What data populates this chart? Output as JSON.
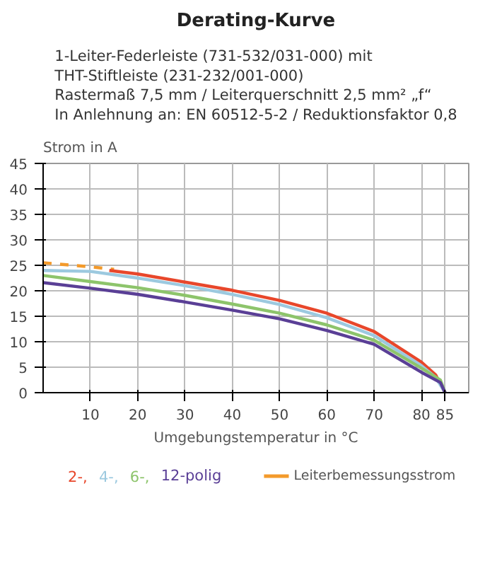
{
  "chart_data": {
    "type": "line",
    "title": "Derating-Kurve",
    "subtitle": "1-Leiter-Federleiste (731-532/031-000) mit\nTHT-Stiftleiste (231-232/001-000)\nRastermaß 7,5 mm / Leiterquerschnitt 2,5 mm² „f“\nIn Anlehnung an: EN 60512-5-2 / Reduktionsfaktor 0,8",
    "ylabel": "Strom in A",
    "xlabel": "Umgebungstemperatur in °C",
    "xlim": [
      0,
      90
    ],
    "xticks": [
      10,
      20,
      30,
      40,
      50,
      60,
      70,
      80,
      85
    ],
    "ylim": [
      0,
      45
    ],
    "yticks": [
      0,
      5,
      10,
      15,
      20,
      25,
      30,
      35,
      40,
      45
    ],
    "grid": true,
    "legend": "bottom",
    "marker": "none",
    "series": [
      {
        "name": "Leiterbemessungsstrom",
        "color": "#f39a2b",
        "line_style": "dashed",
        "x": [
          0,
          5,
          10,
          15
        ],
        "values": [
          25.5,
          25.1,
          24.7,
          24.2
        ]
      },
      {
        "name": "2-,",
        "color": "#e8472b",
        "x": [
          14,
          20,
          30,
          40,
          50,
          60,
          70,
          80,
          83,
          85
        ],
        "values": [
          24,
          23.3,
          21.7,
          20.1,
          18.1,
          15.6,
          12,
          6,
          3.5,
          0
        ]
      },
      {
        "name": "4-,",
        "color": "#9cc9df",
        "x": [
          0,
          10,
          20,
          30,
          40,
          50,
          60,
          70,
          80,
          83,
          85
        ],
        "values": [
          24,
          23.8,
          22.5,
          21,
          19.3,
          17.3,
          14.7,
          11.2,
          5.3,
          3,
          0
        ]
      },
      {
        "name": "6-,",
        "color": "#8dc46b",
        "x": [
          0,
          10,
          20,
          30,
          40,
          50,
          60,
          70,
          80,
          84,
          85
        ],
        "values": [
          23,
          21.8,
          20.6,
          19.1,
          17.4,
          15.6,
          13.3,
          10.3,
          4.8,
          2.5,
          0
        ]
      },
      {
        "name": "12-polig",
        "color": "#5a3f96",
        "x": [
          0,
          10,
          20,
          30,
          40,
          50,
          60,
          70,
          80,
          84,
          85
        ],
        "values": [
          21.6,
          20.5,
          19.3,
          17.8,
          16.2,
          14.5,
          12.2,
          9.5,
          4,
          2,
          0
        ]
      }
    ]
  }
}
